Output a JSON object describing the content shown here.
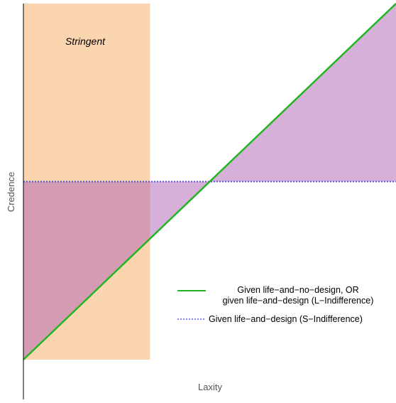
{
  "chart_data": {
    "type": "line",
    "title": "",
    "xlabel": "Laxity",
    "ylabel": "Credence",
    "x_ticks": [],
    "y_ticks": [],
    "xlim": [
      0,
      1
    ],
    "ylim": [
      0,
      1
    ],
    "grid": false,
    "legend_position": "bottom-right",
    "region": {
      "label": "Stringent",
      "x_range": [
        0,
        0.34
      ],
      "color": "#fbd5b0"
    },
    "series": [
      {
        "name": "Given life−and−no−design,  OR\ngiven life−and−design (L−Indifference)",
        "x": [
          0,
          1
        ],
        "y": [
          0,
          1
        ],
        "style": "solid",
        "color": "#22b522"
      },
      {
        "name": "Given life−and−design (S−Indifference)",
        "x": [
          0,
          1
        ],
        "y": [
          0.5,
          0.5
        ],
        "style": "dotted",
        "color": "#5555dd"
      }
    ],
    "shaded_regions": [
      {
        "description": "between lines where x < 0.5",
        "color": "#b061b6",
        "opacity": 0.5
      },
      {
        "description": "between lines where x > 0.5",
        "color": "#b061b6",
        "opacity": 0.5
      }
    ]
  }
}
